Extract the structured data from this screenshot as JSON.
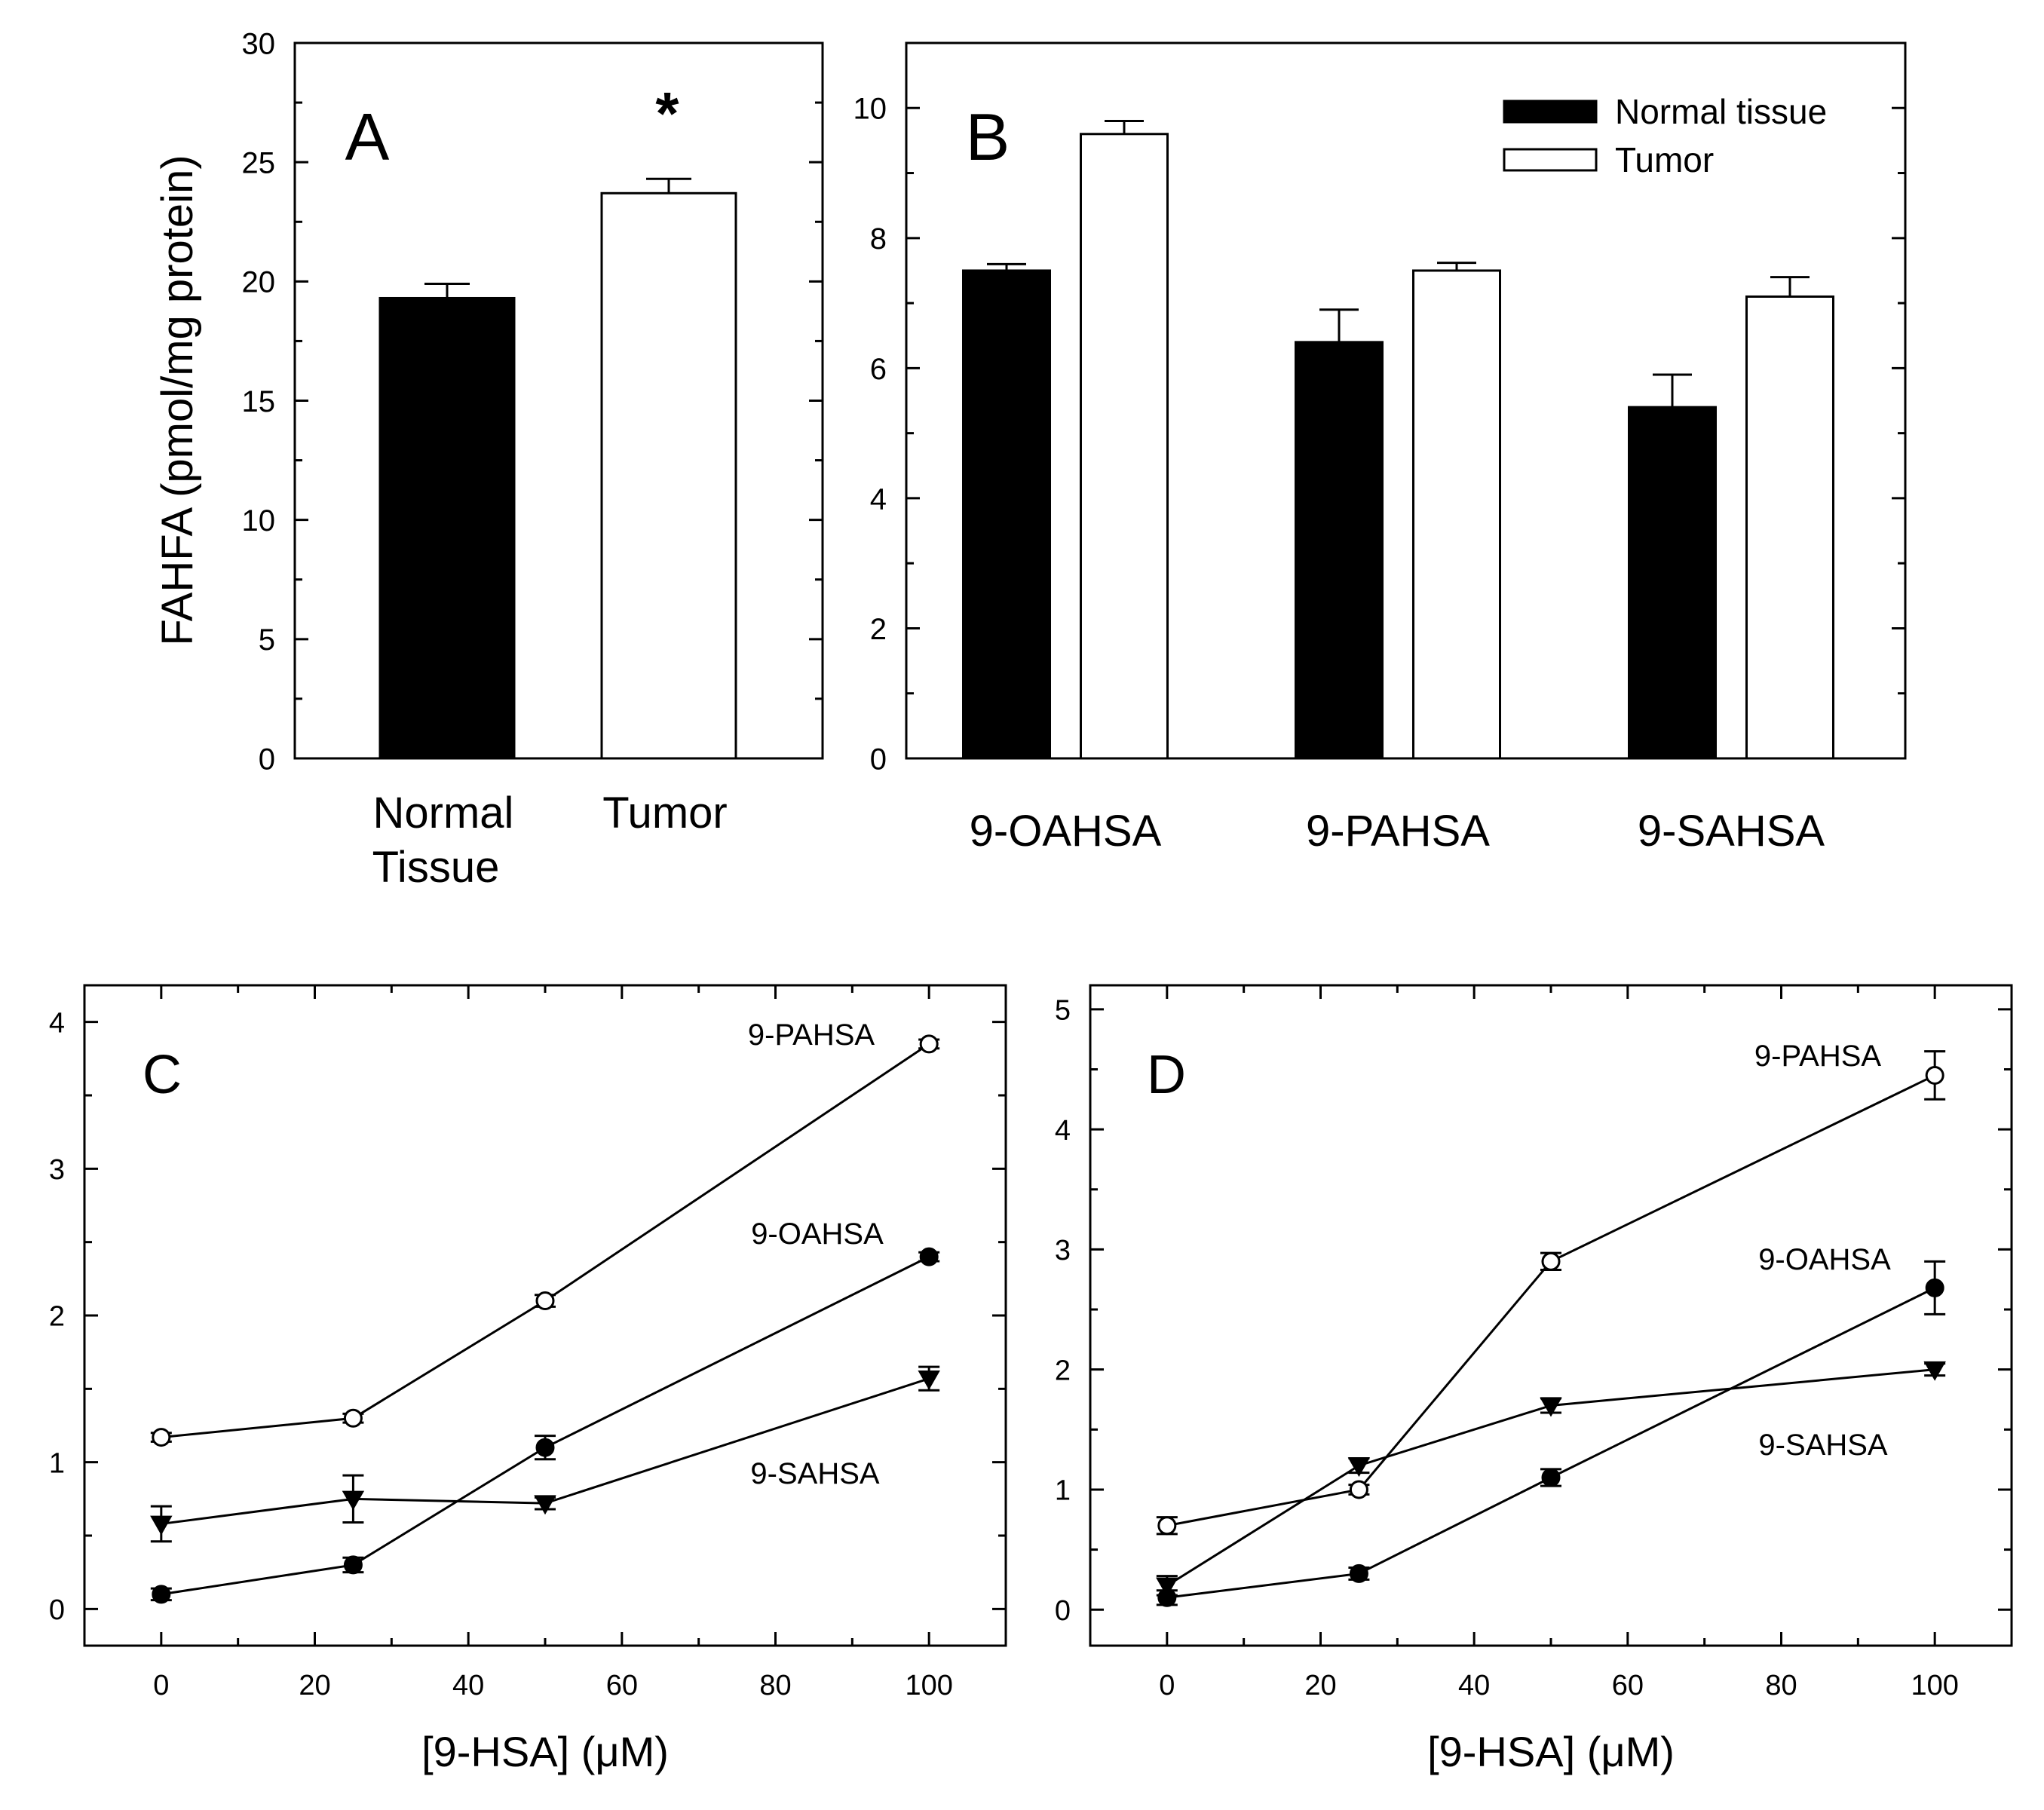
{
  "chart_data": [
    {
      "panel": "A",
      "type": "bar",
      "categories": [
        "Normal\nTissue",
        "Tumor"
      ],
      "values": [
        19.3,
        23.7
      ],
      "errors": [
        0.6,
        0.6
      ],
      "fills": [
        "#000000",
        "#ffffff"
      ],
      "annotations": [
        "",
        "*"
      ],
      "ylabel": "FAHFA (pmol/mg protein)",
      "ylim": [
        0,
        30
      ],
      "yticks": [
        0,
        5,
        10,
        15,
        20,
        25,
        30
      ]
    },
    {
      "panel": "B",
      "type": "bar",
      "categories": [
        "9-OAHSA",
        "9-PAHSA",
        "9-SAHSA"
      ],
      "series": [
        {
          "name": "Normal tissue",
          "fill": "#000000",
          "values": [
            7.5,
            6.4,
            5.4
          ],
          "errors": [
            0.1,
            0.5,
            0.5
          ]
        },
        {
          "name": "Tumor",
          "fill": "#ffffff",
          "values": [
            9.6,
            7.5,
            7.1
          ],
          "errors": [
            0.2,
            0.12,
            0.3
          ]
        }
      ],
      "ylim": [
        0,
        11
      ],
      "yticks": [
        0,
        2,
        4,
        6,
        8,
        10
      ],
      "legend": "top-right"
    },
    {
      "panel": "C",
      "type": "line",
      "xlabel": "[9-HSA] (μM)",
      "x": [
        0,
        25,
        50,
        100
      ],
      "xlim": [
        -10,
        110
      ],
      "xticks": [
        0,
        20,
        40,
        60,
        80,
        100
      ],
      "ylim": [
        -0.25,
        4.25
      ],
      "yticks": [
        0,
        1,
        2,
        3,
        4
      ],
      "series": [
        {
          "name": "9-PAHSA",
          "marker": "open-circle",
          "values": [
            1.17,
            1.3,
            2.1,
            3.85
          ],
          "errors": [
            0.03,
            0.03,
            0.04,
            0.03
          ]
        },
        {
          "name": "9-OAHSA",
          "marker": "filled-circle",
          "values": [
            0.1,
            0.3,
            1.1,
            2.4
          ],
          "errors": [
            0.04,
            0.05,
            0.08,
            0.03
          ]
        },
        {
          "name": "9-SAHSA",
          "marker": "filled-triangle-down",
          "values": [
            0.58,
            0.75,
            0.72,
            1.57
          ],
          "errors": [
            0.12,
            0.16,
            0.04,
            0.08
          ]
        }
      ]
    },
    {
      "panel": "D",
      "type": "line",
      "xlabel": "[9-HSA] (μM)",
      "x": [
        0,
        25,
        50,
        100
      ],
      "xlim": [
        -10,
        110
      ],
      "xticks": [
        0,
        20,
        40,
        60,
        80,
        100
      ],
      "ylim": [
        -0.3,
        5.2
      ],
      "yticks": [
        0,
        1,
        2,
        3,
        4,
        5
      ],
      "series": [
        {
          "name": "9-PAHSA",
          "marker": "open-circle",
          "values": [
            0.7,
            1.0,
            2.9,
            4.45
          ],
          "errors": [
            0.07,
            0.04,
            0.07,
            0.2
          ]
        },
        {
          "name": "9-OAHSA",
          "marker": "filled-circle",
          "values": [
            0.1,
            0.3,
            1.1,
            2.68
          ],
          "errors": [
            0.06,
            0.05,
            0.07,
            0.22
          ]
        },
        {
          "name": "9-SAHSA",
          "marker": "filled-triangle-down",
          "values": [
            0.2,
            1.2,
            1.7,
            2.0
          ],
          "errors": [
            0.08,
            0.06,
            0.06,
            0.05
          ]
        }
      ]
    }
  ]
}
